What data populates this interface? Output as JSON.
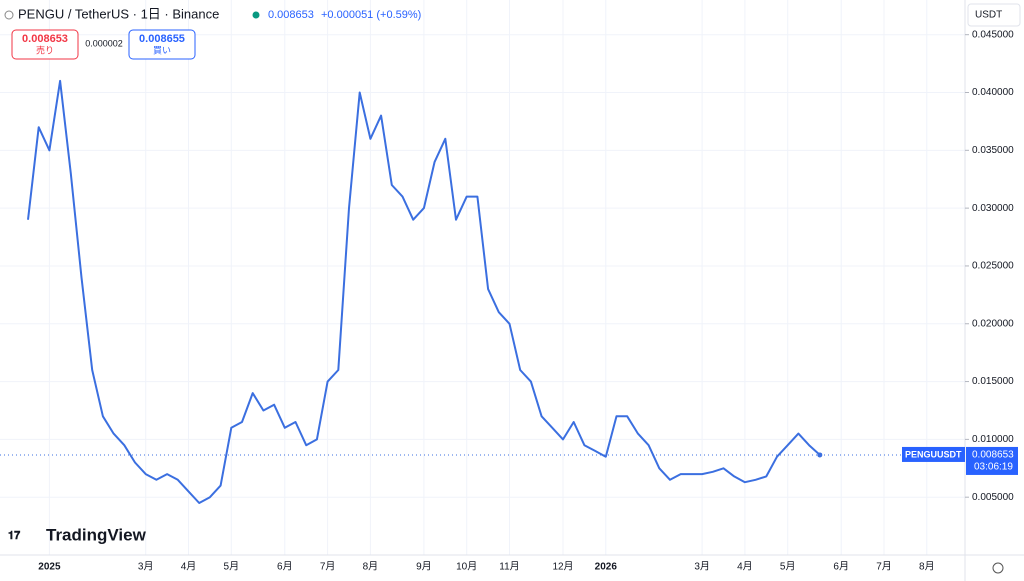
{
  "header": {
    "symbol": "PENGU / TetherUS · 1日 · Binance",
    "price": "0.008653",
    "change": "+0.000051 (+0.59%)",
    "sell_price": "0.008653",
    "sell_label": "売り",
    "spread": "0.000002",
    "buy_price": "0.008655",
    "buy_label": "買い",
    "currency": "USDT",
    "logo": "TradingView",
    "price_tag": "PENGUUSDT",
    "countdown": "03:06:19"
  },
  "chart_data": {
    "type": "line",
    "last_price": 0.008653,
    "categories": [
      null,
      null,
      "2025",
      null,
      null,
      null,
      null,
      null,
      null,
      null,
      null,
      "3月",
      null,
      null,
      null,
      "4月",
      null,
      null,
      null,
      "5月",
      null,
      null,
      null,
      null,
      "6月",
      null,
      null,
      null,
      "7月",
      null,
      null,
      null,
      "8月",
      null,
      null,
      null,
      null,
      "9月",
      null,
      null,
      null,
      "10月",
      null,
      null,
      null,
      "11月",
      null,
      null,
      null,
      null,
      "12月",
      null,
      null,
      null,
      "2026",
      null,
      null,
      null,
      null,
      null,
      null,
      null,
      null,
      "3月",
      null,
      null,
      null,
      "4月",
      null,
      null,
      null,
      "5月",
      null,
      null,
      null,
      null,
      "6月",
      null,
      null,
      null,
      "7月",
      null,
      null,
      null,
      "8月"
    ],
    "series": [
      {
        "name": "PENGUUSDT",
        "color": "#3b6fe0",
        "values": [
          0.029,
          0.037,
          0.035,
          0.041,
          0.033,
          0.024,
          0.016,
          0.012,
          0.0105,
          0.0095,
          0.008,
          0.007,
          0.0065,
          0.007,
          0.0065,
          0.0055,
          0.0045,
          0.005,
          0.006,
          0.011,
          0.0115,
          0.014,
          0.0125,
          0.013,
          0.011,
          0.0115,
          0.0095,
          0.01,
          0.015,
          0.016,
          0.03,
          0.04,
          0.036,
          0.038,
          0.032,
          0.031,
          0.029,
          0.03,
          0.034,
          0.036,
          0.029,
          0.031,
          0.031,
          0.023,
          0.021,
          0.02,
          0.016,
          0.015,
          0.012,
          0.011,
          0.01,
          0.0115,
          0.0095,
          0.009,
          0.0085,
          0.012,
          0.012,
          0.0105,
          0.0095,
          0.0075,
          0.0065,
          0.007,
          0.007,
          0.007,
          0.0072,
          0.0075,
          0.0068,
          0.0063,
          0.0065,
          0.0068,
          0.0085,
          0.0095,
          0.0105,
          0.0095,
          0.008653,
          null,
          null,
          null,
          null,
          null,
          null,
          null,
          null,
          null,
          null
        ]
      }
    ],
    "ylim": [
      0,
      0.048
    ],
    "yticks": [
      {
        "value": 0.005,
        "label": "0.005000"
      },
      {
        "value": 0.01,
        "label": "0.010000"
      },
      {
        "value": 0.015,
        "label": "0.015000"
      },
      {
        "value": 0.02,
        "label": "0.020000"
      },
      {
        "value": 0.025,
        "label": "0.025000"
      },
      {
        "value": 0.03,
        "label": "0.030000"
      },
      {
        "value": 0.035,
        "label": "0.035000"
      },
      {
        "value": 0.04,
        "label": "0.040000"
      },
      {
        "value": 0.045,
        "label": "0.045000"
      }
    ],
    "grid": true
  }
}
